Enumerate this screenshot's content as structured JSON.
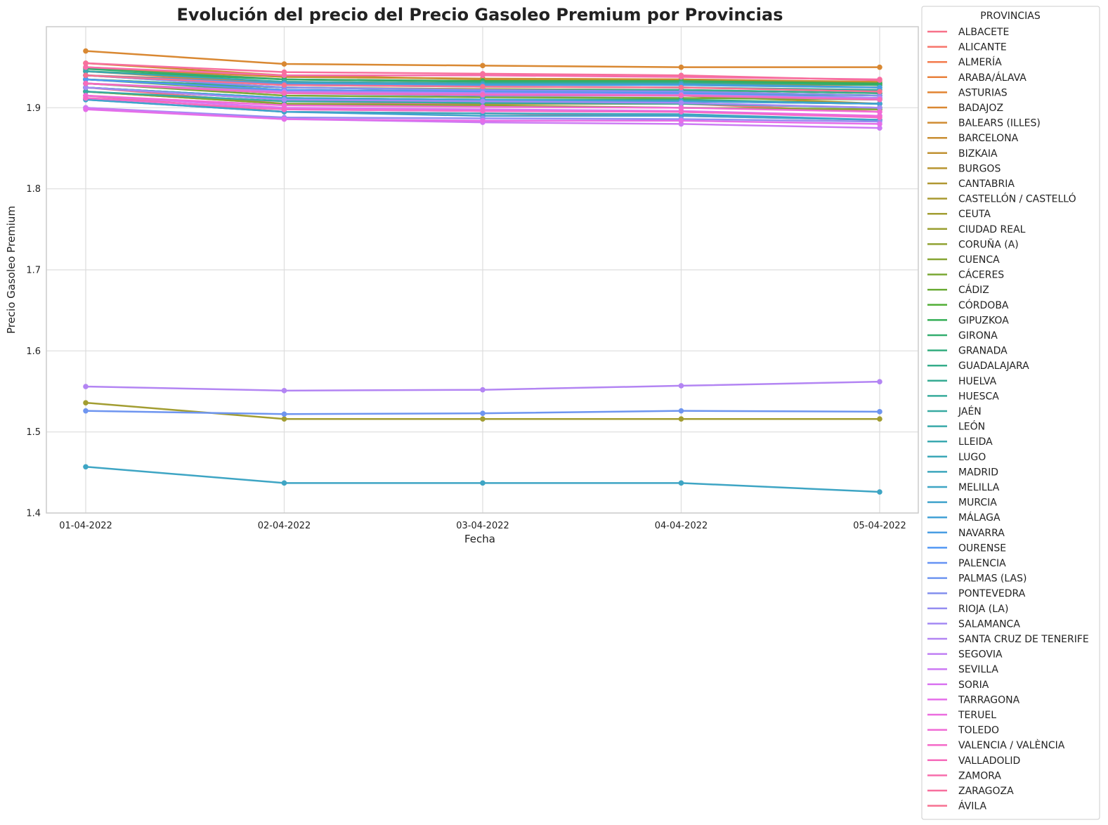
{
  "chart_data": {
    "type": "line",
    "title": "Evolución del precio del Precio Gasoleo Premium por Provincias",
    "xlabel": "Fecha",
    "ylabel": "Precio Gasoleo Premium",
    "x": [
      "01-04-2022",
      "02-04-2022",
      "03-04-2022",
      "04-04-2022",
      "05-04-2022"
    ],
    "ylim": [
      1.4,
      2.0
    ],
    "yticks": [
      "1.4",
      "1.5",
      "1.6",
      "1.7",
      "1.8",
      "1.9"
    ],
    "grid": true,
    "legend_title": "PROVINCIAS",
    "legend_position": "outside-right",
    "series": [
      {
        "name": "ALBACETE",
        "color": "#f77189",
        "values": [
          1.925,
          1.905,
          1.905,
          1.905,
          1.895
        ]
      },
      {
        "name": "ALICANTE",
        "color": "#f7756b",
        "values": [
          1.915,
          1.895,
          1.893,
          1.89,
          1.885
        ]
      },
      {
        "name": "ALMERÍA",
        "color": "#f47b4c",
        "values": [
          1.95,
          1.935,
          1.932,
          1.93,
          1.928
        ]
      },
      {
        "name": "ARABA/ÁLAVA",
        "color": "#e9803b",
        "values": [
          1.945,
          1.93,
          1.93,
          1.928,
          1.925
        ]
      },
      {
        "name": "ASTURIAS",
        "color": "#e28432",
        "values": [
          1.94,
          1.932,
          1.93,
          1.93,
          1.928
        ]
      },
      {
        "name": "BADAJOZ",
        "color": "#d98832",
        "values": [
          1.97,
          1.954,
          1.952,
          1.95,
          1.95
        ]
      },
      {
        "name": "BALEARS (ILLES)",
        "color": "#d08b32",
        "values": [
          1.955,
          1.94,
          1.935,
          1.935,
          1.93
        ]
      },
      {
        "name": "BARCELONA",
        "color": "#c88e32",
        "values": [
          1.95,
          1.938,
          1.936,
          1.935,
          1.932
        ]
      },
      {
        "name": "BIZKAIA",
        "color": "#c09132",
        "values": [
          1.93,
          1.918,
          1.916,
          1.915,
          1.905
        ]
      },
      {
        "name": "BURGOS",
        "color": "#b89431",
        "values": [
          1.935,
          1.925,
          1.922,
          1.92,
          1.915
        ]
      },
      {
        "name": "CANTABRIA",
        "color": "#b09731",
        "values": [
          1.94,
          1.925,
          1.923,
          1.922,
          1.918
        ]
      },
      {
        "name": "CASTELLÓN / CASTELLÓ",
        "color": "#a99a31",
        "values": [
          1.92,
          1.905,
          1.903,
          1.9,
          1.898
        ]
      },
      {
        "name": "CEUTA",
        "color": "#a29d31",
        "values": [
          1.536,
          1.516,
          1.516,
          1.516,
          1.516
        ]
      },
      {
        "name": "CIUDAD REAL",
        "color": "#9a9f31",
        "values": [
          1.925,
          1.91,
          1.905,
          1.905,
          1.9
        ]
      },
      {
        "name": "CORUÑA (A)",
        "color": "#91a232",
        "values": [
          1.935,
          1.922,
          1.92,
          1.92,
          1.915
        ]
      },
      {
        "name": "CUENCA",
        "color": "#86a533",
        "values": [
          1.92,
          1.905,
          1.902,
          1.9,
          1.898
        ]
      },
      {
        "name": "CÁCERES",
        "color": "#7aa834",
        "values": [
          1.93,
          1.915,
          1.913,
          1.912,
          1.91
        ]
      },
      {
        "name": "CÁDIZ",
        "color": "#6aab35",
        "values": [
          1.935,
          1.92,
          1.918,
          1.915,
          1.912
        ]
      },
      {
        "name": "CÓRDOBA",
        "color": "#52ae36",
        "values": [
          1.925,
          1.912,
          1.91,
          1.908,
          1.905
        ]
      },
      {
        "name": "GIPUZKOA",
        "color": "#35ae56",
        "values": [
          1.945,
          1.935,
          1.933,
          1.933,
          1.93
        ]
      },
      {
        "name": "GIRONA",
        "color": "#33ae6f",
        "values": [
          1.948,
          1.935,
          1.932,
          1.932,
          1.928
        ]
      },
      {
        "name": "GRANADA",
        "color": "#34ad7f",
        "values": [
          1.925,
          1.912,
          1.91,
          1.91,
          1.905
        ]
      },
      {
        "name": "GUADALAJARA",
        "color": "#35ac8a",
        "values": [
          1.935,
          1.925,
          1.922,
          1.922,
          1.918
        ]
      },
      {
        "name": "HUELVA",
        "color": "#36ab93",
        "values": [
          1.925,
          1.91,
          1.908,
          1.908,
          1.905
        ]
      },
      {
        "name": "HUESCA",
        "color": "#37ab9b",
        "values": [
          1.94,
          1.928,
          1.926,
          1.925,
          1.922
        ]
      },
      {
        "name": "JAÉN",
        "color": "#38aaa2",
        "values": [
          1.92,
          1.908,
          1.906,
          1.905,
          1.9
        ]
      },
      {
        "name": "LEÓN",
        "color": "#39a9a9",
        "values": [
          1.935,
          1.922,
          1.92,
          1.918,
          1.915
        ]
      },
      {
        "name": "LLEIDA",
        "color": "#3aa8b0",
        "values": [
          1.945,
          1.932,
          1.93,
          1.93,
          1.925
        ]
      },
      {
        "name": "LUGO",
        "color": "#3ba7b7",
        "values": [
          1.93,
          1.918,
          1.916,
          1.915,
          1.91
        ]
      },
      {
        "name": "MADRID",
        "color": "#3ca6bd",
        "values": [
          1.91,
          1.895,
          1.893,
          1.892,
          1.885
        ]
      },
      {
        "name": "MELILLA",
        "color": "#3ea5c4",
        "values": [
          1.457,
          1.437,
          1.437,
          1.437,
          1.426
        ]
      },
      {
        "name": "MURCIA",
        "color": "#40a3cc",
        "values": [
          1.91,
          1.895,
          1.89,
          1.89,
          1.885
        ]
      },
      {
        "name": "MÁLAGA",
        "color": "#43a1d6",
        "values": [
          1.925,
          1.912,
          1.91,
          1.908,
          1.905
        ]
      },
      {
        "name": "NAVARRA",
        "color": "#489de3",
        "values": [
          1.94,
          1.93,
          1.928,
          1.928,
          1.925
        ]
      },
      {
        "name": "OURENSE",
        "color": "#5399f4",
        "values": [
          1.935,
          1.922,
          1.92,
          1.918,
          1.912
        ]
      },
      {
        "name": "PALENCIA",
        "color": "#6693f4",
        "values": [
          1.93,
          1.918,
          1.915,
          1.915,
          1.912
        ]
      },
      {
        "name": "PALMAS (LAS)",
        "color": "#6e95f0",
        "values": [
          1.526,
          1.522,
          1.523,
          1.526,
          1.525
        ]
      },
      {
        "name": "PONTEVEDRA",
        "color": "#8490ee",
        "values": [
          1.94,
          1.925,
          1.922,
          1.92,
          1.915
        ]
      },
      {
        "name": "RIOJA (LA)",
        "color": "#958df1",
        "values": [
          1.9,
          1.888,
          1.887,
          1.886,
          1.883
        ]
      },
      {
        "name": "SALAMANCA",
        "color": "#a48af4",
        "values": [
          1.925,
          1.91,
          1.908,
          1.906,
          1.9
        ]
      },
      {
        "name": "SANTA CRUZ DE TENERIFE",
        "color": "#b385f3",
        "values": [
          1.556,
          1.551,
          1.552,
          1.557,
          1.562
        ]
      },
      {
        "name": "SEGOVIA",
        "color": "#c07ff4",
        "values": [
          1.93,
          1.92,
          1.918,
          1.916,
          1.912
        ]
      },
      {
        "name": "SEVILLA",
        "color": "#cd7af4",
        "values": [
          1.9,
          1.886,
          1.882,
          1.88,
          1.875
        ]
      },
      {
        "name": "SORIA",
        "color": "#da75f1",
        "values": [
          1.915,
          1.9,
          1.898,
          1.896,
          1.89
        ]
      },
      {
        "name": "TARRAGONA",
        "color": "#e56ee9",
        "values": [
          1.898,
          1.886,
          1.884,
          1.884,
          1.88
        ]
      },
      {
        "name": "TERUEL",
        "color": "#ec6cdf",
        "values": [
          1.912,
          1.898,
          1.896,
          1.895,
          1.89
        ]
      },
      {
        "name": "TOLEDO",
        "color": "#f16bd5",
        "values": [
          1.915,
          1.903,
          1.901,
          1.9,
          1.895
        ]
      },
      {
        "name": "VALENCIA / VALÈNCIA",
        "color": "#f46ac8",
        "values": [
          1.912,
          1.898,
          1.896,
          1.895,
          1.888
        ]
      },
      {
        "name": "VALLADOLID",
        "color": "#f66bbb",
        "values": [
          1.93,
          1.918,
          1.916,
          1.915,
          1.91
        ]
      },
      {
        "name": "ZAMORA",
        "color": "#f76dac",
        "values": [
          1.95,
          1.94,
          1.94,
          1.938,
          1.935
        ]
      },
      {
        "name": "ZARAGOZA",
        "color": "#f76f9d",
        "values": [
          1.955,
          1.944,
          1.942,
          1.94,
          1.934
        ]
      },
      {
        "name": "ÁVILA",
        "color": "#f77191",
        "values": [
          1.94,
          1.928,
          1.926,
          1.925,
          1.92
        ]
      }
    ]
  }
}
